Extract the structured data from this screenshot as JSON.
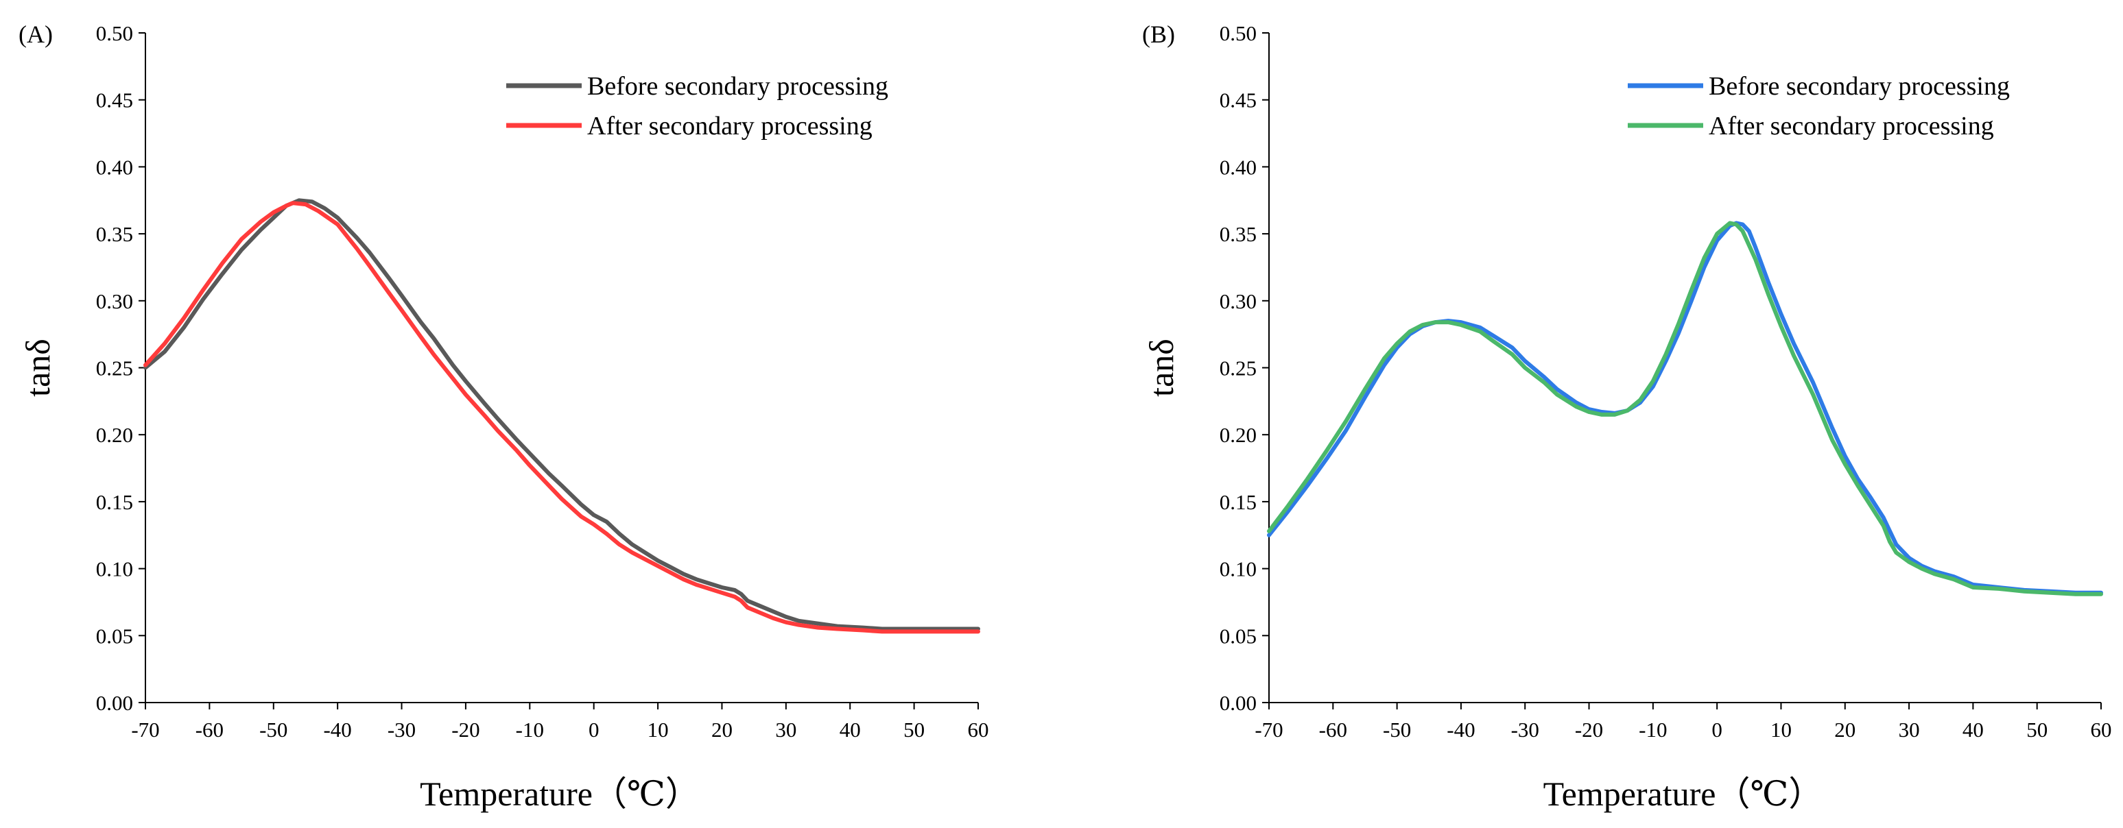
{
  "chart_data": [
    {
      "panel_label": "(A)",
      "type": "line",
      "xlabel": "Temperature（℃）",
      "ylabel": "tanδ",
      "xlim": [
        -70,
        60
      ],
      "ylim": [
        0,
        0.5
      ],
      "x_ticks": [
        "-70",
        "-60",
        "-50",
        "-40",
        "-30",
        "-20",
        "-10",
        "0",
        "10",
        "20",
        "30",
        "40",
        "50",
        "60"
      ],
      "y_ticks": [
        "0.00",
        "0.05",
        "0.10",
        "0.15",
        "0.20",
        "0.25",
        "0.30",
        "0.35",
        "0.40",
        "0.45",
        "0.50"
      ],
      "grid": false,
      "legend_position": "top-right",
      "series": [
        {
          "name": "Before secondary processing",
          "color": "#595959",
          "points": [
            [
              -70,
              0.25
            ],
            [
              -67,
              0.262
            ],
            [
              -64,
              0.28
            ],
            [
              -61,
              0.301
            ],
            [
              -58,
              0.32
            ],
            [
              -55,
              0.338
            ],
            [
              -52,
              0.353
            ],
            [
              -50,
              0.362
            ],
            [
              -48,
              0.371
            ],
            [
              -46,
              0.375
            ],
            [
              -44,
              0.374
            ],
            [
              -42,
              0.369
            ],
            [
              -40,
              0.362
            ],
            [
              -37,
              0.347
            ],
            [
              -35,
              0.336
            ],
            [
              -32,
              0.317
            ],
            [
              -30,
              0.304
            ],
            [
              -27,
              0.284
            ],
            [
              -25,
              0.272
            ],
            [
              -22,
              0.252
            ],
            [
              -20,
              0.24
            ],
            [
              -17,
              0.223
            ],
            [
              -15,
              0.212
            ],
            [
              -12,
              0.196
            ],
            [
              -10,
              0.186
            ],
            [
              -7,
              0.171
            ],
            [
              -5,
              0.162
            ],
            [
              -2,
              0.148
            ],
            [
              0,
              0.14
            ],
            [
              2,
              0.135
            ],
            [
              4,
              0.126
            ],
            [
              6,
              0.118
            ],
            [
              8,
              0.112
            ],
            [
              10,
              0.106
            ],
            [
              12,
              0.101
            ],
            [
              14,
              0.096
            ],
            [
              16,
              0.092
            ],
            [
              18,
              0.089
            ],
            [
              20,
              0.086
            ],
            [
              22,
              0.084
            ],
            [
              23,
              0.081
            ],
            [
              24,
              0.076
            ],
            [
              26,
              0.072
            ],
            [
              28,
              0.068
            ],
            [
              30,
              0.064
            ],
            [
              32,
              0.061
            ],
            [
              35,
              0.059
            ],
            [
              38,
              0.057
            ],
            [
              42,
              0.056
            ],
            [
              45,
              0.055
            ],
            [
              50,
              0.055
            ],
            [
              55,
              0.055
            ],
            [
              60,
              0.055
            ]
          ]
        },
        {
          "name": "After secondary processing",
          "color": "#ff3b3b",
          "points": [
            [
              -70,
              0.252
            ],
            [
              -67,
              0.268
            ],
            [
              -64,
              0.287
            ],
            [
              -61,
              0.308
            ],
            [
              -58,
              0.328
            ],
            [
              -55,
              0.346
            ],
            [
              -52,
              0.359
            ],
            [
              -50,
              0.366
            ],
            [
              -48,
              0.371
            ],
            [
              -47,
              0.373
            ],
            [
              -45,
              0.372
            ],
            [
              -43,
              0.367
            ],
            [
              -40,
              0.357
            ],
            [
              -37,
              0.339
            ],
            [
              -35,
              0.326
            ],
            [
              -32,
              0.306
            ],
            [
              -30,
              0.293
            ],
            [
              -27,
              0.273
            ],
            [
              -25,
              0.26
            ],
            [
              -22,
              0.242
            ],
            [
              -20,
              0.23
            ],
            [
              -17,
              0.214
            ],
            [
              -15,
              0.203
            ],
            [
              -12,
              0.188
            ],
            [
              -10,
              0.177
            ],
            [
              -7,
              0.162
            ],
            [
              -5,
              0.152
            ],
            [
              -2,
              0.139
            ],
            [
              0,
              0.133
            ],
            [
              2,
              0.126
            ],
            [
              4,
              0.118
            ],
            [
              6,
              0.112
            ],
            [
              8,
              0.107
            ],
            [
              10,
              0.102
            ],
            [
              12,
              0.097
            ],
            [
              14,
              0.092
            ],
            [
              16,
              0.088
            ],
            [
              18,
              0.085
            ],
            [
              20,
              0.082
            ],
            [
              22,
              0.079
            ],
            [
              23,
              0.076
            ],
            [
              24,
              0.071
            ],
            [
              26,
              0.067
            ],
            [
              28,
              0.063
            ],
            [
              30,
              0.06
            ],
            [
              32,
              0.058
            ],
            [
              35,
              0.056
            ],
            [
              38,
              0.055
            ],
            [
              42,
              0.054
            ],
            [
              45,
              0.053
            ],
            [
              50,
              0.053
            ],
            [
              55,
              0.053
            ],
            [
              60,
              0.053
            ]
          ]
        }
      ]
    },
    {
      "panel_label": "(B)",
      "type": "line",
      "xlabel": "Temperature（℃）",
      "ylabel": "tanδ",
      "xlim": [
        -70,
        60
      ],
      "ylim": [
        0,
        0.5
      ],
      "x_ticks": [
        "-70",
        "-60",
        "-50",
        "-40",
        "-30",
        "-20",
        "-10",
        "0",
        "10",
        "20",
        "30",
        "40",
        "50",
        "60"
      ],
      "y_ticks": [
        "0.00",
        "0.05",
        "0.10",
        "0.15",
        "0.20",
        "0.25",
        "0.30",
        "0.35",
        "0.40",
        "0.45",
        "0.50"
      ],
      "grid": false,
      "legend_position": "top-right",
      "series": [
        {
          "name": "Before secondary processing",
          "color": "#2e7be6",
          "points": [
            [
              -70,
              0.125
            ],
            [
              -67,
              0.143
            ],
            [
              -64,
              0.162
            ],
            [
              -61,
              0.182
            ],
            [
              -58,
              0.203
            ],
            [
              -55,
              0.228
            ],
            [
              -52,
              0.252
            ],
            [
              -50,
              0.265
            ],
            [
              -48,
              0.275
            ],
            [
              -46,
              0.281
            ],
            [
              -44,
              0.284
            ],
            [
              -42,
              0.285
            ],
            [
              -40,
              0.284
            ],
            [
              -37,
              0.28
            ],
            [
              -35,
              0.274
            ],
            [
              -32,
              0.265
            ],
            [
              -30,
              0.255
            ],
            [
              -27,
              0.243
            ],
            [
              -25,
              0.234
            ],
            [
              -22,
              0.224
            ],
            [
              -20,
              0.219
            ],
            [
              -18,
              0.217
            ],
            [
              -16,
              0.216
            ],
            [
              -14,
              0.218
            ],
            [
              -12,
              0.224
            ],
            [
              -10,
              0.236
            ],
            [
              -8,
              0.255
            ],
            [
              -6,
              0.276
            ],
            [
              -4,
              0.3
            ],
            [
              -2,
              0.325
            ],
            [
              0,
              0.345
            ],
            [
              2,
              0.356
            ],
            [
              3,
              0.358
            ],
            [
              4,
              0.357
            ],
            [
              5,
              0.352
            ],
            [
              6,
              0.34
            ],
            [
              8,
              0.314
            ],
            [
              10,
              0.29
            ],
            [
              12,
              0.268
            ],
            [
              15,
              0.239
            ],
            [
              18,
              0.205
            ],
            [
              20,
              0.184
            ],
            [
              22,
              0.167
            ],
            [
              24,
              0.153
            ],
            [
              26,
              0.138
            ],
            [
              27,
              0.128
            ],
            [
              28,
              0.118
            ],
            [
              30,
              0.108
            ],
            [
              32,
              0.102
            ],
            [
              34,
              0.098
            ],
            [
              37,
              0.094
            ],
            [
              40,
              0.088
            ],
            [
              44,
              0.086
            ],
            [
              48,
              0.084
            ],
            [
              52,
              0.083
            ],
            [
              56,
              0.082
            ],
            [
              60,
              0.082
            ]
          ]
        },
        {
          "name": "After secondary processing",
          "color": "#4bb86a",
          "points": [
            [
              -70,
              0.128
            ],
            [
              -67,
              0.147
            ],
            [
              -64,
              0.167
            ],
            [
              -61,
              0.188
            ],
            [
              -58,
              0.21
            ],
            [
              -55,
              0.234
            ],
            [
              -52,
              0.257
            ],
            [
              -50,
              0.268
            ],
            [
              -48,
              0.277
            ],
            [
              -46,
              0.282
            ],
            [
              -44,
              0.284
            ],
            [
              -42,
              0.284
            ],
            [
              -40,
              0.282
            ],
            [
              -37,
              0.277
            ],
            [
              -35,
              0.27
            ],
            [
              -32,
              0.26
            ],
            [
              -30,
              0.25
            ],
            [
              -27,
              0.239
            ],
            [
              -25,
              0.23
            ],
            [
              -22,
              0.221
            ],
            [
              -20,
              0.217
            ],
            [
              -18,
              0.215
            ],
            [
              -16,
              0.215
            ],
            [
              -14,
              0.218
            ],
            [
              -12,
              0.226
            ],
            [
              -10,
              0.24
            ],
            [
              -8,
              0.26
            ],
            [
              -6,
              0.283
            ],
            [
              -4,
              0.308
            ],
            [
              -2,
              0.332
            ],
            [
              0,
              0.35
            ],
            [
              2,
              0.358
            ],
            [
              3,
              0.357
            ],
            [
              4,
              0.352
            ],
            [
              6,
              0.331
            ],
            [
              8,
              0.305
            ],
            [
              10,
              0.281
            ],
            [
              12,
              0.259
            ],
            [
              15,
              0.23
            ],
            [
              18,
              0.196
            ],
            [
              20,
              0.178
            ],
            [
              22,
              0.162
            ],
            [
              24,
              0.147
            ],
            [
              26,
              0.132
            ],
            [
              27,
              0.12
            ],
            [
              28,
              0.112
            ],
            [
              30,
              0.105
            ],
            [
              32,
              0.1
            ],
            [
              34,
              0.096
            ],
            [
              37,
              0.092
            ],
            [
              40,
              0.086
            ],
            [
              44,
              0.085
            ],
            [
              48,
              0.083
            ],
            [
              52,
              0.082
            ],
            [
              56,
              0.081
            ],
            [
              60,
              0.081
            ]
          ]
        }
      ]
    }
  ]
}
